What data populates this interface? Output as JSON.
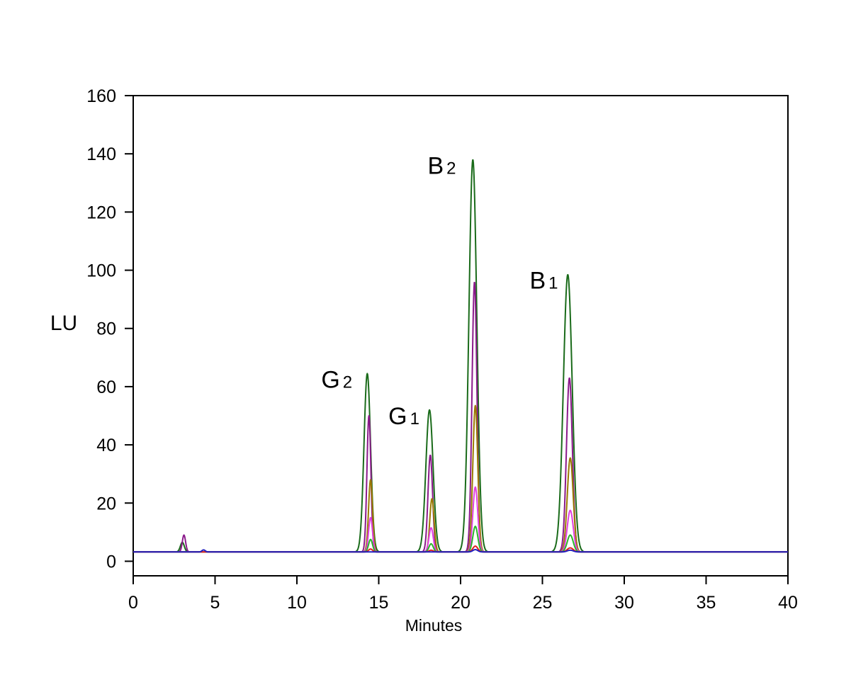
{
  "chart_data": {
    "type": "line",
    "title": "",
    "xlabel": "Minutes",
    "ylabel": "LU",
    "xlim": [
      0,
      40
    ],
    "ylim": [
      -5,
      160
    ],
    "x_ticks": [
      0,
      5,
      10,
      15,
      20,
      25,
      30,
      35,
      40
    ],
    "y_ticks": [
      0,
      20,
      40,
      60,
      80,
      100,
      120,
      140,
      160
    ],
    "grid": false,
    "baseline": 3.2,
    "peaks": [
      {
        "label": "G",
        "subscript": "2",
        "rt": 14.3
      },
      {
        "label": "G",
        "subscript": "1",
        "rt": 18.1
      },
      {
        "label": "B",
        "subscript": "2",
        "rt": 20.8
      },
      {
        "label": "B",
        "subscript": "1",
        "rt": 26.6
      }
    ],
    "series": [
      {
        "color": "#1a6b1a",
        "peaks": [
          {
            "rt": 3.0,
            "height": 6.5,
            "width": 0.12
          },
          {
            "rt": 14.3,
            "height": 64.5,
            "width": 0.2
          },
          {
            "rt": 18.1,
            "height": 52,
            "width": 0.22
          },
          {
            "rt": 20.75,
            "height": 138,
            "width": 0.24
          },
          {
            "rt": 26.55,
            "height": 98.5,
            "width": 0.27
          }
        ]
      },
      {
        "color": "#8b1a8b",
        "peaks": [
          {
            "rt": 3.1,
            "height": 9,
            "width": 0.1
          },
          {
            "rt": 14.4,
            "height": 50,
            "width": 0.12
          },
          {
            "rt": 18.15,
            "height": 36.5,
            "width": 0.14
          },
          {
            "rt": 20.85,
            "height": 96,
            "width": 0.15
          },
          {
            "rt": 26.65,
            "height": 63,
            "width": 0.18
          }
        ]
      },
      {
        "color": "#9a7a00",
        "peaks": [
          {
            "rt": 14.5,
            "height": 28,
            "width": 0.12
          },
          {
            "rt": 18.25,
            "height": 21.5,
            "width": 0.13
          },
          {
            "rt": 20.9,
            "height": 53.5,
            "width": 0.15
          },
          {
            "rt": 26.7,
            "height": 35.5,
            "width": 0.18
          }
        ]
      },
      {
        "color": "#e040e0",
        "peaks": [
          {
            "rt": 14.5,
            "height": 15,
            "width": 0.12
          },
          {
            "rt": 18.2,
            "height": 11.5,
            "width": 0.13
          },
          {
            "rt": 20.9,
            "height": 25.5,
            "width": 0.15
          },
          {
            "rt": 26.7,
            "height": 17.5,
            "width": 0.18
          }
        ]
      },
      {
        "color": "#2bb52b",
        "peaks": [
          {
            "rt": 14.5,
            "height": 7.5,
            "width": 0.12
          },
          {
            "rt": 18.2,
            "height": 6,
            "width": 0.13
          },
          {
            "rt": 20.9,
            "height": 12,
            "width": 0.15
          },
          {
            "rt": 26.7,
            "height": 9,
            "width": 0.18
          }
        ]
      },
      {
        "color": "#e02020",
        "peaks": [
          {
            "rt": 14.5,
            "height": 4.2,
            "width": 0.12
          },
          {
            "rt": 18.2,
            "height": 3.8,
            "width": 0.13
          },
          {
            "rt": 20.9,
            "height": 5.2,
            "width": 0.15
          },
          {
            "rt": 26.7,
            "height": 4.6,
            "width": 0.18
          }
        ]
      },
      {
        "color": "#2020c0",
        "peaks": [
          {
            "rt": 4.3,
            "height": 3.9,
            "width": 0.1
          },
          {
            "rt": 20.9,
            "height": 4.0,
            "width": 0.15
          },
          {
            "rt": 26.7,
            "height": 3.8,
            "width": 0.18
          }
        ]
      }
    ]
  }
}
